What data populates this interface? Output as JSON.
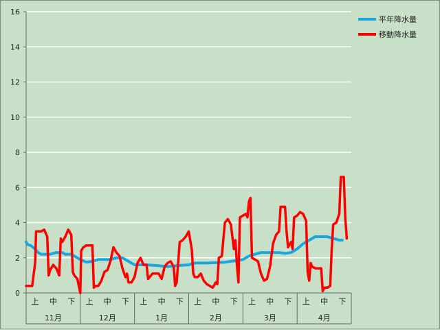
{
  "chart_data": {
    "type": "line",
    "title": "",
    "xlabel": "",
    "ylabel": "",
    "ylim": [
      0,
      16
    ],
    "yticks": [
      0,
      2,
      4,
      6,
      8,
      10,
      12,
      14,
      16
    ],
    "grid": true,
    "legend_position": "top-right",
    "months": [
      "11月",
      "12月",
      "1月",
      "2月",
      "3月",
      "4月"
    ],
    "decades": [
      "上",
      "中",
      "下"
    ],
    "x_unit": "半旬",
    "series": [
      {
        "name": "平年降水量",
        "color": "#1aa7e0",
        "points": [
          [
            0,
            2.9
          ],
          [
            0.5,
            2.75
          ],
          [
            1.5,
            2.7
          ],
          [
            3,
            2.5
          ],
          [
            4,
            2.3
          ],
          [
            5,
            2.2
          ],
          [
            8,
            2.2
          ],
          [
            10,
            2.3
          ],
          [
            12,
            2.3
          ],
          [
            13,
            2.2
          ],
          [
            15,
            2.2
          ],
          [
            16,
            2.1
          ],
          [
            18,
            1.9
          ],
          [
            20,
            1.75
          ],
          [
            22,
            1.8
          ],
          [
            24,
            1.9
          ],
          [
            28,
            1.9
          ],
          [
            30,
            2.0
          ],
          [
            32,
            2.0
          ],
          [
            34,
            1.8
          ],
          [
            36,
            1.6
          ],
          [
            40,
            1.6
          ],
          [
            44,
            1.55
          ],
          [
            47,
            1.5
          ],
          [
            50,
            1.55
          ],
          [
            54,
            1.6
          ],
          [
            56,
            1.7
          ],
          [
            60,
            1.7
          ],
          [
            66,
            1.75
          ],
          [
            70,
            1.85
          ],
          [
            72,
            1.9
          ],
          [
            74,
            2.1
          ],
          [
            76,
            2.2
          ],
          [
            78,
            2.3
          ],
          [
            84,
            2.3
          ],
          [
            86,
            2.25
          ],
          [
            88,
            2.3
          ],
          [
            90,
            2.5
          ],
          [
            92,
            2.8
          ],
          [
            94,
            3.0
          ],
          [
            96,
            3.2
          ],
          [
            100,
            3.2
          ],
          [
            102,
            3.1
          ],
          [
            104,
            3.0
          ],
          [
            105,
            3.0
          ]
        ]
      },
      {
        "name": "移動降水量",
        "color": "#ff0000",
        "points": [
          [
            0,
            0.4
          ],
          [
            2,
            0.4
          ],
          [
            3,
            1.7
          ],
          [
            3.3,
            3.5
          ],
          [
            5,
            3.5
          ],
          [
            6,
            3.6
          ],
          [
            7,
            3.2
          ],
          [
            7.5,
            1.0
          ],
          [
            8,
            1.3
          ],
          [
            9,
            1.6
          ],
          [
            10,
            1.4
          ],
          [
            11,
            1.0
          ],
          [
            11.5,
            3.1
          ],
          [
            12,
            2.9
          ],
          [
            13,
            3.2
          ],
          [
            14,
            3.6
          ],
          [
            15,
            3.3
          ],
          [
            15.5,
            1.2
          ],
          [
            16,
            1.0
          ],
          [
            17,
            0.8
          ],
          [
            18,
            0.0
          ],
          [
            18.3,
            2.4
          ],
          [
            19,
            2.6
          ],
          [
            20,
            2.7
          ],
          [
            22,
            2.7
          ],
          [
            22.5,
            0.3
          ],
          [
            23,
            0.4
          ],
          [
            24,
            0.4
          ],
          [
            25,
            0.7
          ],
          [
            26,
            1.2
          ],
          [
            27,
            1.3
          ],
          [
            28,
            1.8
          ],
          [
            29,
            2.6
          ],
          [
            30,
            2.3
          ],
          [
            31,
            2.1
          ],
          [
            32,
            1.4
          ],
          [
            33,
            0.9
          ],
          [
            33.5,
            1.1
          ],
          [
            34,
            0.6
          ],
          [
            35,
            0.6
          ],
          [
            36,
            0.9
          ],
          [
            37,
            1.7
          ],
          [
            38,
            2.0
          ],
          [
            39,
            1.6
          ],
          [
            40,
            1.6
          ],
          [
            40.5,
            0.8
          ],
          [
            41,
            0.9
          ],
          [
            42,
            1.1
          ],
          [
            44,
            1.1
          ],
          [
            45,
            0.8
          ],
          [
            46,
            1.5
          ],
          [
            47,
            1.7
          ],
          [
            48,
            1.8
          ],
          [
            49,
            1.5
          ],
          [
            49.5,
            0.4
          ],
          [
            50,
            0.6
          ],
          [
            51,
            2.9
          ],
          [
            52,
            3.0
          ],
          [
            53,
            3.2
          ],
          [
            54,
            3.5
          ],
          [
            55,
            2.5
          ],
          [
            55.5,
            1.1
          ],
          [
            56,
            0.9
          ],
          [
            57,
            0.9
          ],
          [
            58,
            1.1
          ],
          [
            59,
            0.7
          ],
          [
            60,
            0.5
          ],
          [
            61,
            0.4
          ],
          [
            62,
            0.3
          ],
          [
            63,
            0.6
          ],
          [
            63.5,
            0.5
          ],
          [
            64,
            2.0
          ],
          [
            65,
            2.1
          ],
          [
            66,
            4.0
          ],
          [
            67,
            4.2
          ],
          [
            68,
            3.9
          ],
          [
            69,
            2.5
          ],
          [
            69.5,
            3.0
          ],
          [
            70,
            1.6
          ],
          [
            70.5,
            0.6
          ],
          [
            71,
            4.3
          ],
          [
            72,
            4.4
          ],
          [
            73,
            4.5
          ],
          [
            73.5,
            4.3
          ],
          [
            74,
            5.2
          ],
          [
            74.5,
            5.4
          ],
          [
            75,
            2.0
          ],
          [
            76,
            1.9
          ],
          [
            77,
            1.8
          ],
          [
            78,
            1.1
          ],
          [
            79,
            0.7
          ],
          [
            80,
            0.8
          ],
          [
            81,
            1.5
          ],
          [
            82,
            2.8
          ],
          [
            83,
            3.3
          ],
          [
            84,
            3.5
          ],
          [
            84.5,
            4.9
          ],
          [
            86,
            4.9
          ],
          [
            86.5,
            3.5
          ],
          [
            87,
            2.6
          ],
          [
            88,
            2.9
          ],
          [
            88.5,
            2.5
          ],
          [
            89,
            4.3
          ],
          [
            90,
            4.4
          ],
          [
            91,
            4.6
          ],
          [
            92,
            4.5
          ],
          [
            93,
            4.1
          ],
          [
            93.5,
            1.2
          ],
          [
            94,
            0.7
          ],
          [
            94.5,
            1.7
          ],
          [
            95,
            1.5
          ],
          [
            96,
            1.4
          ],
          [
            98,
            1.4
          ],
          [
            98.5,
            0.1
          ],
          [
            99,
            0.3
          ],
          [
            100,
            0.3
          ],
          [
            101,
            0.4
          ],
          [
            101.5,
            2.5
          ],
          [
            102,
            3.9
          ],
          [
            103,
            4.0
          ],
          [
            104,
            4.5
          ],
          [
            104.5,
            6.6
          ],
          [
            105.5,
            6.6
          ],
          [
            106,
            4.3
          ],
          [
            106.5,
            3.1
          ]
        ]
      }
    ]
  }
}
